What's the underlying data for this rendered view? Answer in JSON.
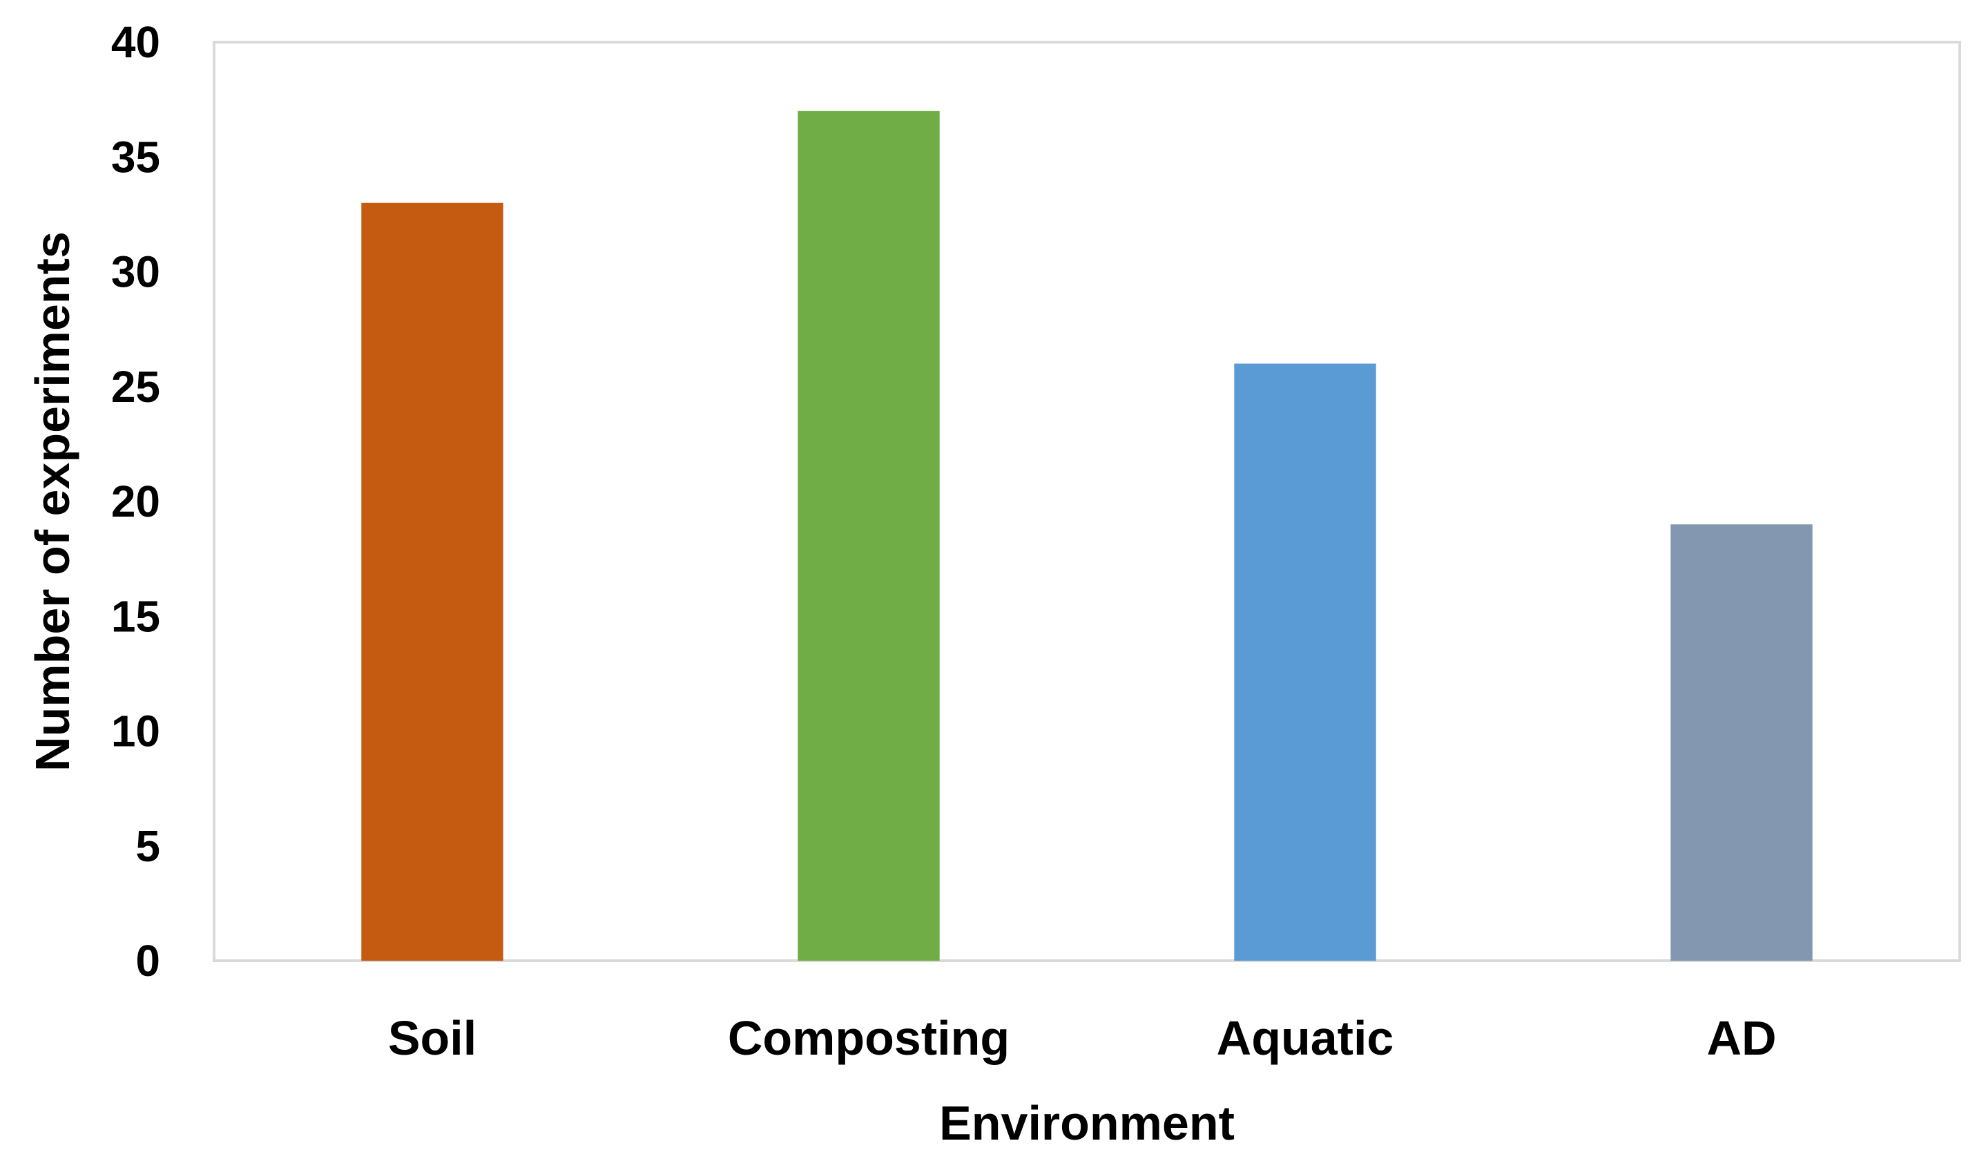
{
  "chart_data": {
    "type": "bar",
    "title": "",
    "xlabel": "Environment",
    "ylabel": "Number of experiments",
    "categories": [
      "Soil",
      "Composting",
      "Aquatic",
      "AD"
    ],
    "values": [
      33,
      37,
      26,
      19
    ],
    "colors": [
      "#C55A11",
      "#70AD47",
      "#5B9BD5",
      "#8497B0"
    ],
    "ylim": [
      0,
      40
    ],
    "yticks": [
      0,
      5,
      10,
      15,
      20,
      25,
      30,
      35,
      40
    ],
    "grid": false,
    "legend": "none",
    "frame_color": "#D9D9D9"
  }
}
